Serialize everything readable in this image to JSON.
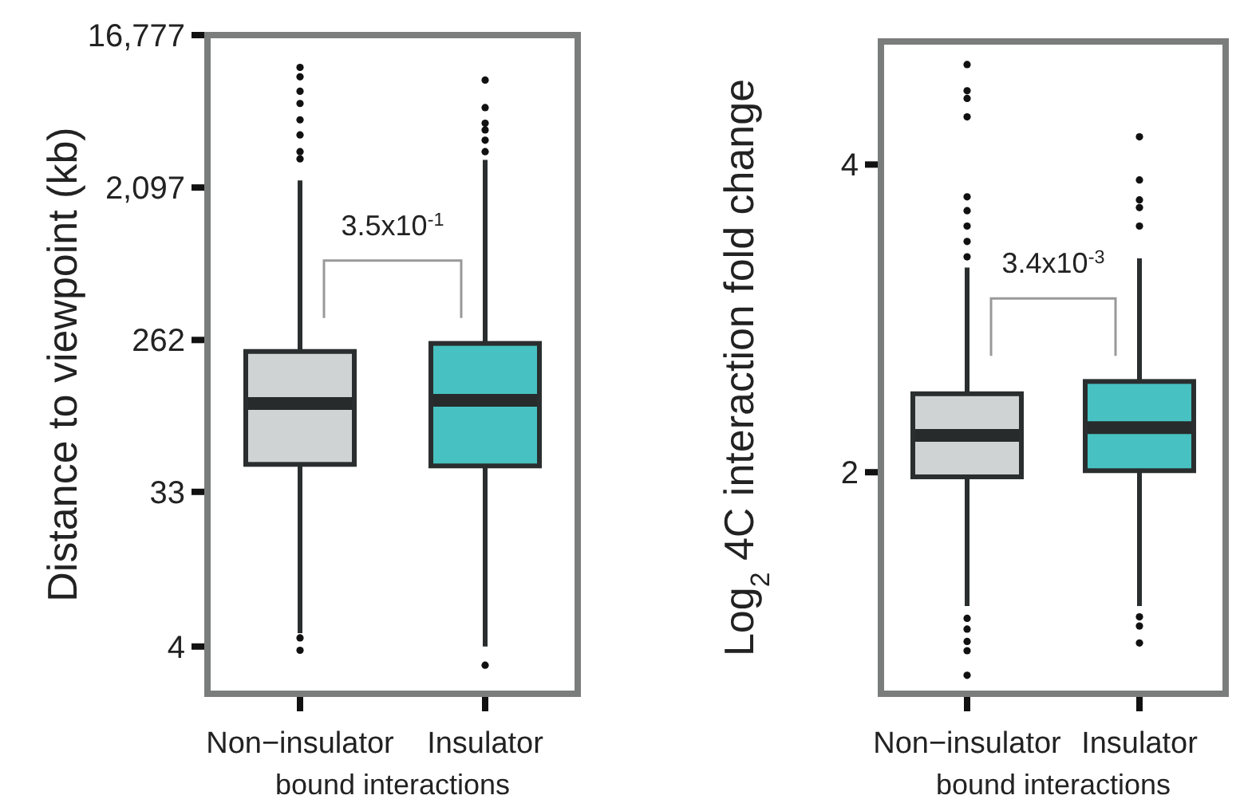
{
  "chart_data": [
    {
      "type": "box",
      "ylabel": "Distance to viewpoint (kb)",
      "xlabel": "bound interactions",
      "categories": [
        "Non−insulator",
        "Insulator"
      ],
      "colors": [
        "#cfd3d4",
        "#47c1c1"
      ],
      "log": true,
      "ylim": [
        2.1,
        16777
      ],
      "yticks": [
        4,
        33,
        262,
        {
          "value": 2097,
          "label": "2,097"
        },
        {
          "value": 16777,
          "label": "16,777"
        }
      ],
      "grid": false,
      "boxes": [
        {
          "low": 4.8,
          "q1": 48,
          "median": 110,
          "q3": 224,
          "high": 2309,
          "outliers": [
            10800,
            9500,
            7800,
            6600,
            5280,
            4300,
            3420,
            3100,
            4.5,
            3.8
          ]
        },
        {
          "low": 4,
          "q1": 47,
          "median": 115,
          "q3": 250,
          "high": 3060,
          "outliers": [
            9080,
            6240,
            5040,
            4600,
            4000,
            3420,
            3.1
          ]
        }
      ],
      "annotations": [
        "3.5x10$^{-1}$"
      ]
    },
    {
      "type": "box",
      "ylabel": "Log$_{2}$ 4C interaction fold change",
      "xlabel": "bound interactions",
      "categories": [
        "Non−insulator",
        "Insulator"
      ],
      "colors": [
        "#cfd3d4",
        "#47c1c1"
      ],
      "ylim": [
        0.56,
        4.8
      ],
      "yticks": [
        2,
        4
      ],
      "grid": false,
      "boxes": [
        {
          "low": 1.13,
          "q1": 1.97,
          "median": 2.24,
          "q3": 2.51,
          "high": 3.33,
          "outliers": [
            4.65,
            4.48,
            4.43,
            4.31,
            3.79,
            3.7,
            3.6,
            3.5,
            3.4,
            1.05,
            0.98,
            0.9,
            0.84,
            0.68
          ]
        },
        {
          "low": 1.13,
          "q1": 2.01,
          "median": 2.29,
          "q3": 2.59,
          "high": 3.39,
          "outliers": [
            4.18,
            3.9,
            3.77,
            3.72,
            3.6,
            1.06,
            1.0,
            0.89
          ]
        }
      ],
      "annotations": [
        "3.4x10$^{-3}$"
      ]
    }
  ]
}
